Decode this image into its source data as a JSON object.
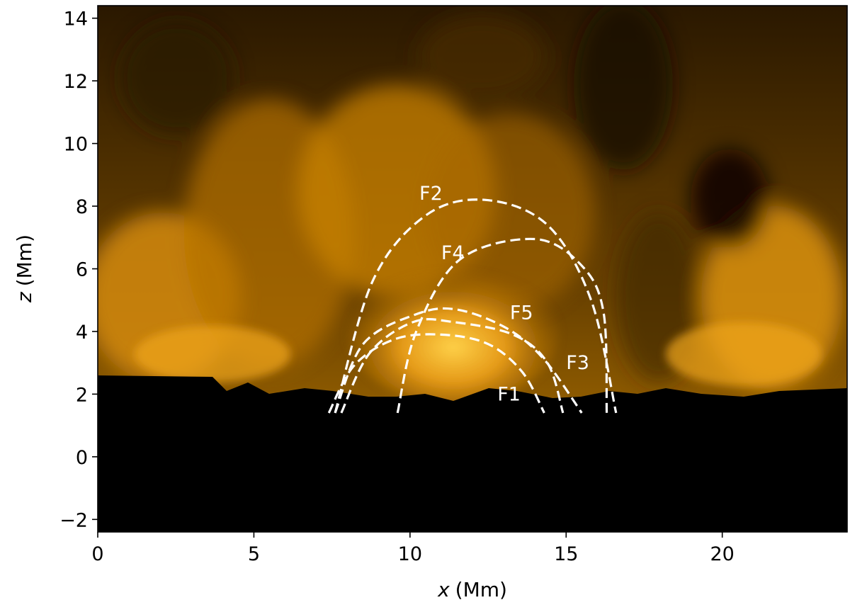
{
  "chart_data": {
    "type": "heatmap",
    "title": "",
    "xlabel_var": "x",
    "xlabel_unit": "(Mm)",
    "ylabel_var": "z",
    "ylabel_unit": "(Mm)",
    "xlim": [
      0,
      24
    ],
    "ylim": [
      -2.4,
      14.4
    ],
    "xticks": [
      0,
      5,
      10,
      15,
      20
    ],
    "xtick_labels": [
      "0",
      "5",
      "10",
      "15",
      "20"
    ],
    "yticks": [
      -2,
      0,
      2,
      4,
      6,
      8,
      10,
      12,
      14
    ],
    "ytick_labels": [
      "−2",
      "0",
      "2",
      "4",
      "6",
      "8",
      "10",
      "12",
      "14"
    ],
    "grid": false,
    "colormap": "black-orange-yellow (AIA 171-like)",
    "background_colors": {
      "dark": "#000000",
      "mid": "#b87400",
      "bright": "#ffd24a"
    },
    "photosphere_height": 2.1,
    "loops": [
      {
        "name": "F1",
        "x": [
          7.4,
          8.2,
          9.5,
          11,
          12.5,
          13.6,
          14.3
        ],
        "z": [
          1.4,
          2.9,
          3.75,
          3.9,
          3.6,
          2.7,
          1.4
        ],
        "label_xy": [
          12.8,
          1.8
        ]
      },
      {
        "name": "F2",
        "x": [
          7.6,
          8.8,
          10.5,
          12.4,
          14.4,
          15.8,
          16.6
        ],
        "z": [
          1.4,
          5.6,
          7.7,
          8.2,
          7.4,
          5.0,
          1.4
        ],
        "label_xy": [
          10.3,
          8.2
        ]
      },
      {
        "name": "F3",
        "x": [
          7.8,
          8.7,
          10.1,
          11.4,
          13.3,
          14.4,
          14.9
        ],
        "z": [
          1.4,
          3.3,
          4.3,
          4.3,
          3.9,
          3.0,
          1.4
        ],
        "label_xy": [
          15.0,
          2.8
        ]
      },
      {
        "name": "F4",
        "x": [
          9.6,
          10.2,
          11.6,
          14.0,
          15.5,
          16.2,
          16.3
        ],
        "z": [
          1.4,
          4.0,
          6.3,
          6.95,
          6.1,
          4.6,
          1.4
        ],
        "label_xy": [
          11.0,
          6.3
        ]
      },
      {
        "name": "F5",
        "x": [
          7.6,
          8.5,
          10.2,
          11.5,
          13.1,
          14.3,
          15.5
        ],
        "z": [
          1.4,
          3.6,
          4.55,
          4.7,
          4.1,
          3.1,
          1.4
        ],
        "label_xy": [
          13.2,
          4.4
        ]
      }
    ]
  }
}
